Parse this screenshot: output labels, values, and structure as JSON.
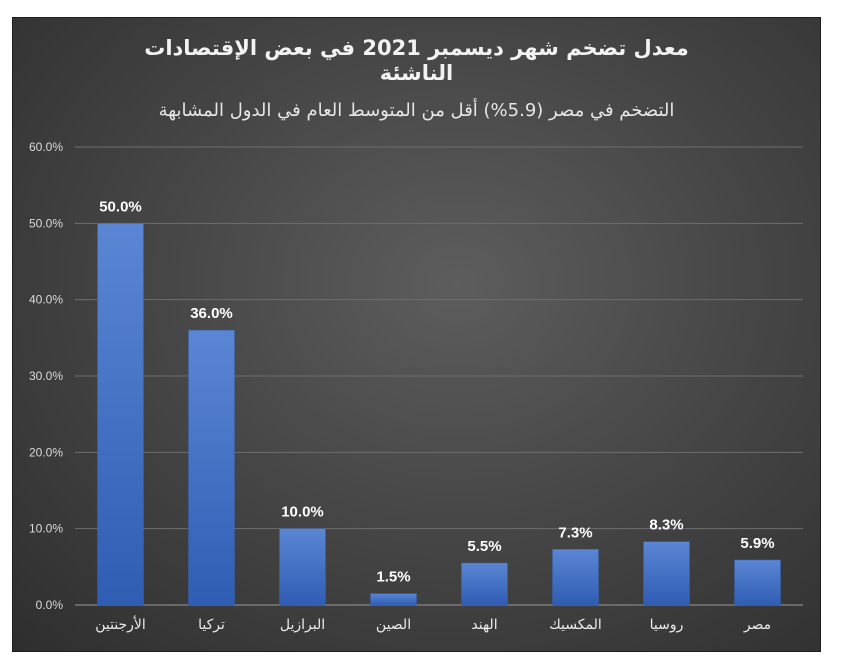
{
  "chart_data": {
    "type": "bar",
    "title_lines": [
      "معدل تضخم شهر ديسمبر 2021 في بعض الإقتصادات",
      "الناشئة"
    ],
    "subtitle": "التضخم في مصر (5.9%) أقل من المتوسط العام في الدول المشابهة",
    "categories": [
      "الأرجنتين",
      "تركيا",
      "البرازيل",
      "الصين",
      "الهند",
      "المكسيك",
      "روسيا",
      "مصر"
    ],
    "values": [
      50.0,
      36.0,
      10.0,
      1.5,
      5.5,
      7.3,
      8.3,
      5.9
    ],
    "data_labels": [
      "50.0%",
      "36.0%",
      "10.0%",
      "1.5%",
      "5.5%",
      "7.3%",
      "8.3%",
      "5.9%"
    ],
    "y_ticks": [
      "0.0%",
      "10.0%",
      "20.0%",
      "30.0%",
      "40.0%",
      "50.0%",
      "60.0%"
    ],
    "ylim": [
      0,
      60
    ],
    "grid": true,
    "legend": "none",
    "bar_color": "#4472c4"
  }
}
